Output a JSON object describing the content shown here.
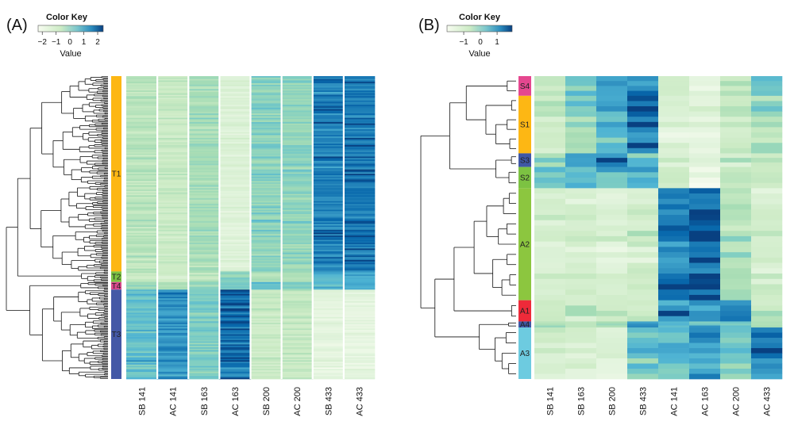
{
  "panels": [
    {
      "label": "(A)",
      "color_key": {
        "title": "Color Key",
        "ticks": [
          "−2",
          "−1",
          "0",
          "1",
          "2"
        ],
        "value_label": "Value"
      }
    },
    {
      "label": "(B)",
      "color_key": {
        "title": "Color Key",
        "ticks": [
          "−1",
          "0",
          "1"
        ],
        "value_label": "Value"
      }
    }
  ],
  "chart_data": [
    {
      "type": "heatmap",
      "title": "",
      "columns": [
        "SB 141",
        "AC 141",
        "SB 163",
        "AC 163",
        "SB 200",
        "AC 200",
        "SB 433",
        "AC 433"
      ],
      "color_scale": {
        "min": -2,
        "max": 2.5,
        "low_color": "#f7fcf0",
        "mid_color": "#7bc6cc",
        "high_color": "#084081"
      },
      "row_clusters": [
        {
          "name": "T1",
          "color": "#fdb714",
          "row_fraction": 0.645,
          "column_means": [
            0.0,
            -0.3,
            0.3,
            -1.0,
            0.7,
            0.6,
            2.0,
            2.1
          ]
        },
        {
          "name": "T2",
          "color": "#7cc242",
          "row_fraction": 0.035,
          "column_means": [
            -0.2,
            -0.4,
            0.1,
            0.8,
            0.3,
            0.4,
            1.5,
            1.6
          ]
        },
        {
          "name": "T4",
          "color": "#d9488c",
          "row_fraction": 0.025,
          "column_means": [
            0.4,
            0.3,
            0.5,
            0.9,
            1.0,
            1.0,
            1.2,
            1.4
          ]
        },
        {
          "name": "T3",
          "color": "#4459a6",
          "row_fraction": 0.295,
          "column_means": [
            1.2,
            1.8,
            0.8,
            2.2,
            -0.3,
            -0.2,
            -1.3,
            -1.3
          ]
        }
      ]
    },
    {
      "type": "heatmap",
      "title": "",
      "columns": [
        "SB 141",
        "SB 163",
        "SB 200",
        "SB 433",
        "AC 141",
        "AC 163",
        "AC 200",
        "AC 433"
      ],
      "color_scale": {
        "min": -1.5,
        "max": 1.7,
        "low_color": "#f7fcf0",
        "mid_color": "#7bc6cc",
        "high_color": "#084081"
      },
      "row_clusters": [
        {
          "name": "S4",
          "color": "#e5478f",
          "row_fraction": 0.065,
          "column_means": [
            -0.2,
            0.6,
            1.2,
            1.3,
            -0.3,
            -1.0,
            -0.1,
            0.8
          ]
        },
        {
          "name": "S1",
          "color": "#fdb714",
          "row_fraction": 0.19,
          "column_means": [
            -0.2,
            0.4,
            0.9,
            1.4,
            -0.7,
            -0.9,
            -0.3,
            0.3
          ]
        },
        {
          "name": "S3",
          "color": "#3f57a5",
          "row_fraction": 0.045,
          "column_means": [
            0.4,
            1.1,
            1.5,
            0.8,
            -0.4,
            -0.6,
            -0.4,
            -0.2
          ]
        },
        {
          "name": "S2",
          "color": "#7cc242",
          "row_fraction": 0.07,
          "column_means": [
            0.9,
            0.8,
            0.8,
            1.0,
            -0.3,
            -1.1,
            -0.2,
            0.0
          ]
        },
        {
          "name": "A2",
          "color": "#8cc63f",
          "row_fraction": 0.37,
          "column_means": [
            -0.6,
            -0.5,
            -0.7,
            -0.4,
            1.4,
            1.6,
            0.1,
            -0.5
          ]
        },
        {
          "name": "A1",
          "color": "#ee2a39",
          "row_fraction": 0.07,
          "column_means": [
            -0.5,
            -0.3,
            -0.5,
            -0.4,
            1.2,
            1.1,
            1.3,
            -0.3
          ]
        },
        {
          "name": "A4",
          "color": "#3f57a5",
          "row_fraction": 0.02,
          "column_means": [
            0.0,
            0.0,
            0.2,
            1.1,
            0.8,
            0.7,
            0.6,
            0.2
          ]
        },
        {
          "name": "A3",
          "color": "#6dcbe0",
          "row_fraction": 0.17,
          "column_means": [
            -0.5,
            -0.7,
            -0.8,
            0.6,
            0.8,
            1.1,
            0.6,
            1.3
          ]
        }
      ]
    }
  ]
}
